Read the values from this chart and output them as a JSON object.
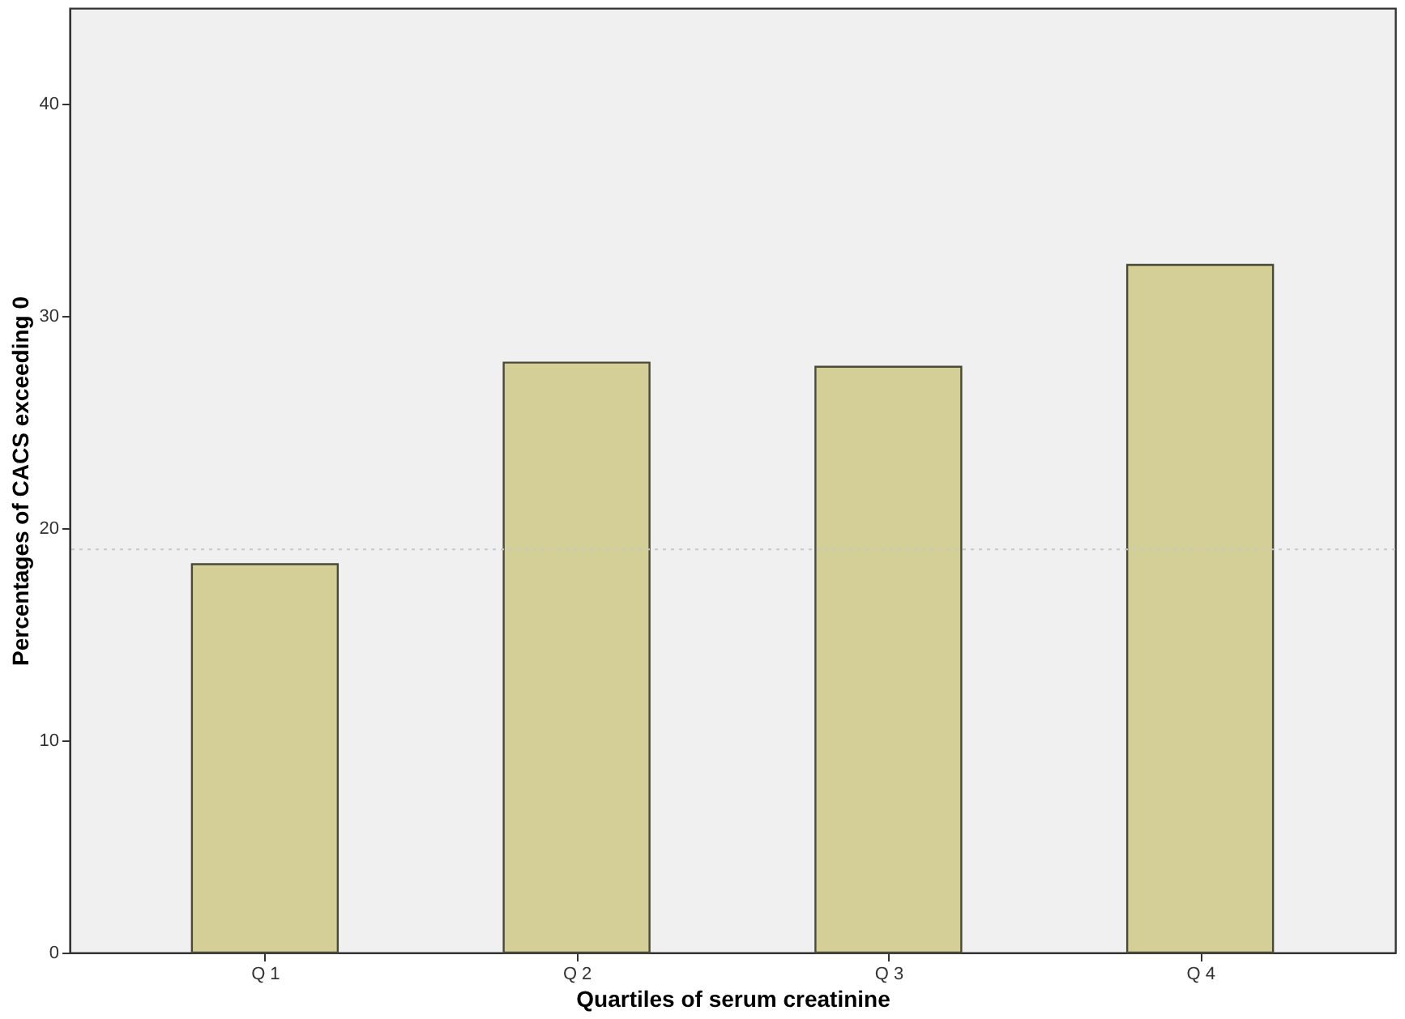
{
  "chart_data": {
    "type": "bar",
    "xlabel": "Quartiles of serum creatinine",
    "ylabel": "Percentages of CACS exceeding 0",
    "categories": [
      "Q 1",
      "Q 2",
      "Q 3",
      "Q 4"
    ],
    "series": [
      {
        "color": "#d3cf96",
        "values": [
          18.3,
          27.8,
          27.6,
          32.4
        ]
      }
    ],
    "ylim": [
      0,
      44.5
    ],
    "yticks": [
      0,
      10,
      20,
      30,
      40
    ],
    "grid": false,
    "ref_lines": [
      {
        "axis": "y",
        "value": 19,
        "color": "#c8c8c8",
        "line_style": "dotted"
      }
    ]
  }
}
